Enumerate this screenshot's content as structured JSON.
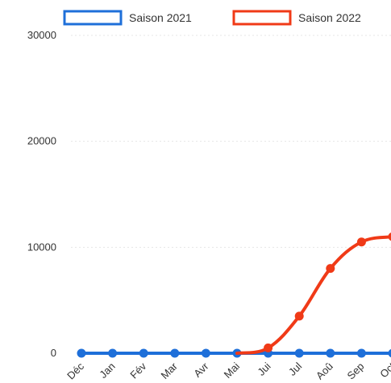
{
  "chart_data": {
    "type": "line",
    "categories": [
      "Déc",
      "Jan",
      "Fév",
      "Mar",
      "Avr",
      "Mai",
      "Jui",
      "Jul",
      "Aoû",
      "Sep",
      "Oct"
    ],
    "series": [
      {
        "name": "Saison 2021",
        "color": "#1e6fd9",
        "values": [
          0,
          0,
          0,
          0,
          0,
          0,
          0,
          0,
          0,
          0,
          0
        ]
      },
      {
        "name": "Saison 2022",
        "color": "#f03a17",
        "values": [
          null,
          null,
          null,
          null,
          null,
          0,
          500,
          3500,
          8000,
          10500,
          11000
        ]
      }
    ],
    "ylim": [
      0,
      30000
    ],
    "yticks": [
      "0",
      "10000",
      "20000",
      "30000"
    ],
    "grid": true,
    "legend": "top"
  }
}
